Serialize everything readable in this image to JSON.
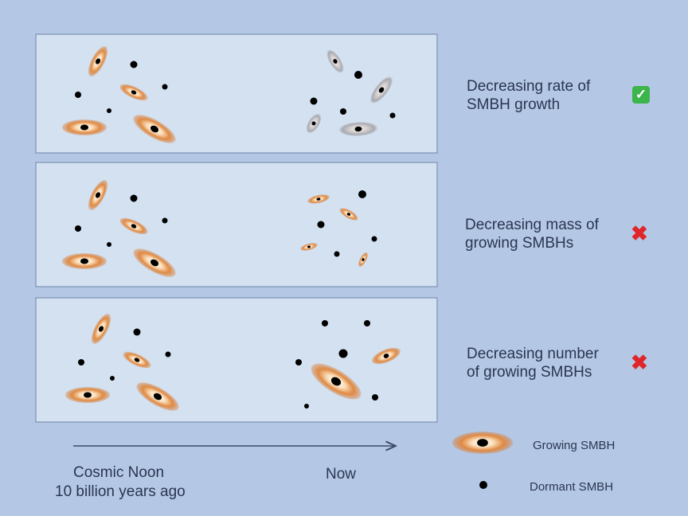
{
  "scenarios": [
    {
      "line1": "Decreasing rate of",
      "line2": "SMBH growth",
      "verdict": "check",
      "verdict_icon": "✅"
    },
    {
      "line1": "Decreasing mass of",
      "line2": "growing SMBHs",
      "verdict": "cross",
      "verdict_icon": "✖"
    },
    {
      "line1": "Decreasing number",
      "line2": "of growing SMBHs",
      "verdict": "cross",
      "verdict_icon": "✖"
    }
  ],
  "timeline": {
    "start_line1": "Cosmic Noon",
    "start_line2": "10 billion years ago",
    "end": "Now"
  },
  "legend": {
    "growing": "Growing SMBH",
    "dormant": "Dormant SMBH"
  },
  "colors": {
    "background": "#b4c8e6",
    "panel": "#d3e1f1",
    "growing": "#d9782e",
    "faded": "#a9a9b0",
    "check": "#3cb54a",
    "cross": "#e0262b"
  }
}
